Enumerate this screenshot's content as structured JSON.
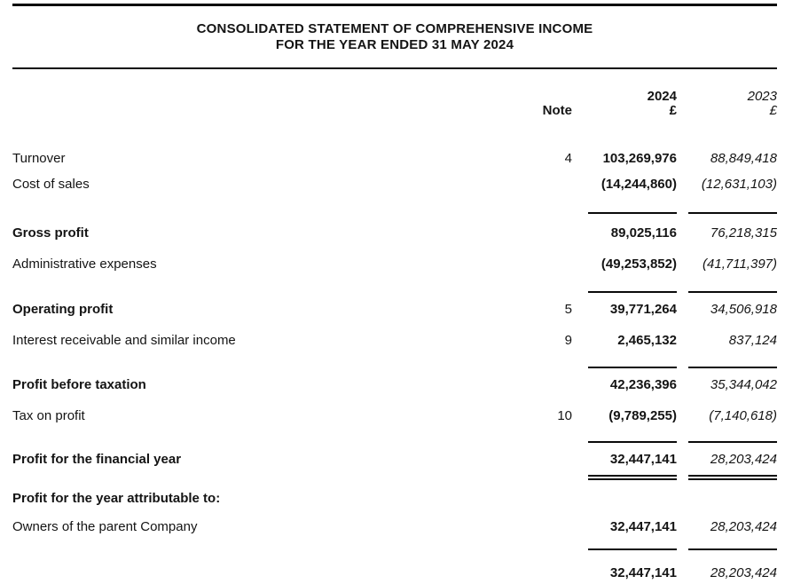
{
  "document": {
    "title_line1": "CONSOLIDATED STATEMENT OF COMPREHENSIVE INCOME",
    "title_line2": "FOR THE YEAR ENDED 31 MAY 2024"
  },
  "columns": {
    "note_header": "Note",
    "current_year": "2024",
    "prior_year": "2023",
    "current_currency": "£",
    "prior_currency": "£"
  },
  "rows": [
    {
      "label": "Turnover",
      "note": "4",
      "current": "103,269,976",
      "prior": "88,849,418"
    },
    {
      "label": "Cost of sales",
      "note": "",
      "current": "(14,244,860)",
      "prior": "(12,631,103)"
    },
    {
      "label": "Gross profit",
      "note": "",
      "current": "89,025,116",
      "prior": "76,218,315"
    },
    {
      "label": "Administrative expenses",
      "note": "",
      "current": "(49,253,852)",
      "prior": "(41,711,397)"
    },
    {
      "label": "Operating profit",
      "note": "5",
      "current": "39,771,264",
      "prior": "34,506,918"
    },
    {
      "label": "Interest receivable and similar income",
      "note": "9",
      "current": "2,465,132",
      "prior": "837,124"
    },
    {
      "label": "Profit before taxation",
      "note": "",
      "current": "42,236,396",
      "prior": "35,344,042"
    },
    {
      "label": "Tax on profit",
      "note": "10",
      "current": "(9,789,255)",
      "prior": "(7,140,618)"
    },
    {
      "label": "Profit for the financial year",
      "note": "",
      "current": "32,447,141",
      "prior": "28,203,424"
    },
    {
      "label": "Profit for the year attributable to:",
      "note": "",
      "current": "",
      "prior": ""
    },
    {
      "label": "Owners of the parent Company",
      "note": "",
      "current": "32,447,141",
      "prior": "28,203,424"
    },
    {
      "label": "",
      "note": "",
      "current": "32,447,141",
      "prior": "28,203,424"
    }
  ]
}
